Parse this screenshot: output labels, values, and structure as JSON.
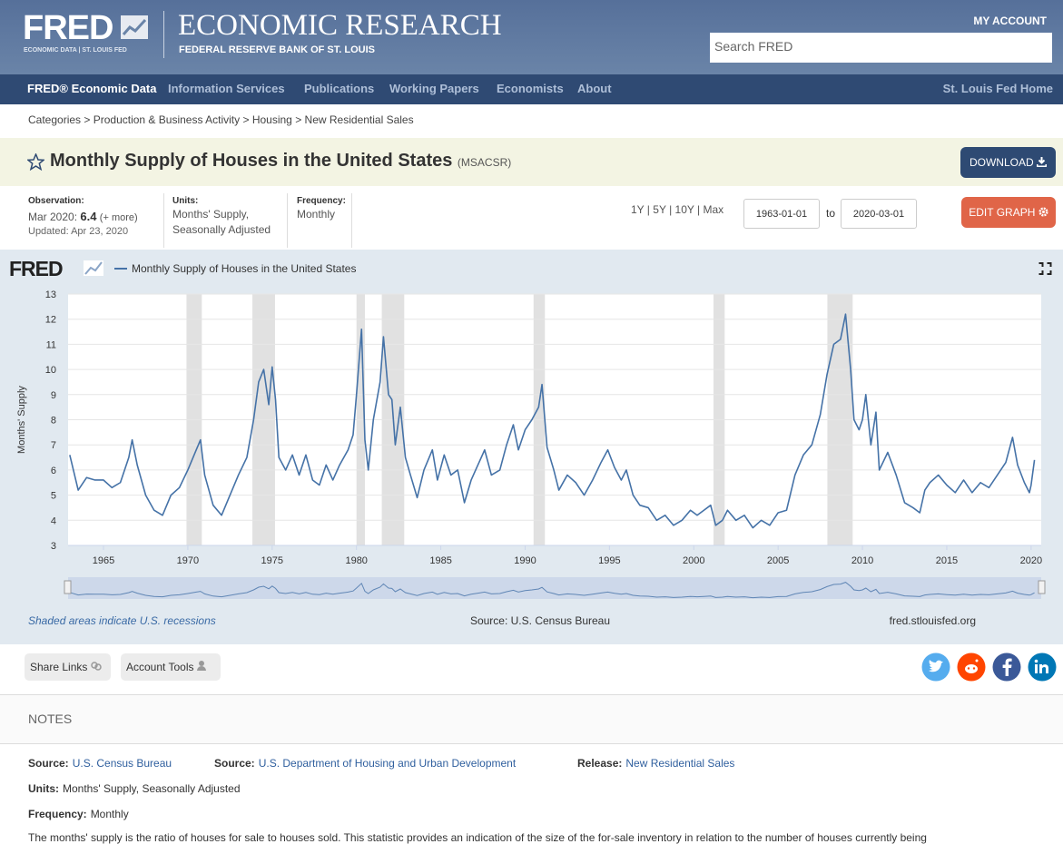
{
  "header": {
    "logo": "FRED",
    "logo_sub": "ECONOMIC DATA | ST. LOUIS FED",
    "title": "ECONOMIC RESEARCH",
    "subtitle": "FEDERAL RESERVE BANK OF ST. LOUIS",
    "account": "MY ACCOUNT",
    "search": "Search FRED"
  },
  "nav": {
    "items": [
      "FRED® Economic Data",
      "Information Services",
      "Publications",
      "Working Papers",
      "Economists",
      "About"
    ],
    "right": "St. Louis Fed Home"
  },
  "breadcrumb": [
    "Categories",
    "Production & Business Activity",
    "Housing",
    "New Residential Sales"
  ],
  "series": {
    "title": "Monthly Supply of Houses in the United States",
    "id": "(MSACSR)",
    "download": "DOWNLOAD"
  },
  "meta": {
    "observation_label": "Observation:",
    "observation_date": "Mar 2020:",
    "observation_value": "6.4",
    "more": "(+ more)",
    "updated": "Updated: Apr 23, 2020",
    "units_label": "Units:",
    "units": [
      "Months' Supply,",
      "Seasonally Adjusted"
    ],
    "frequency_label": "Frequency:",
    "frequency": "Monthly",
    "ranges": [
      "1Y",
      "5Y",
      "10Y",
      "Max"
    ],
    "date_from": "1963-01-01",
    "to": "to",
    "date_to": "2020-03-01",
    "edit": "EDIT GRAPH"
  },
  "chart_data": {
    "type": "line",
    "logo": "FRED",
    "ylabel": "Months' Supply",
    "grid": true,
    "xlim": [
      1962.9,
      2020.6
    ],
    "ylim": [
      3,
      13
    ],
    "xticks": [
      1965,
      1970,
      1975,
      1980,
      1985,
      1990,
      1995,
      2000,
      2005,
      2010,
      2015,
      2020
    ],
    "yticks": [
      3,
      4,
      5,
      6,
      7,
      8,
      9,
      10,
      11,
      12,
      13
    ],
    "recessions": [
      [
        1969.92,
        1970.83
      ],
      [
        1973.83,
        1975.17
      ],
      [
        1980.0,
        1980.5
      ],
      [
        1981.5,
        1982.83
      ],
      [
        1990.5,
        1991.17
      ],
      [
        2001.17,
        2001.83
      ],
      [
        2007.92,
        2009.42
      ]
    ],
    "recession_color": "#e1e1e1",
    "x": [
      1963.0,
      1963.5,
      1964.0,
      1964.5,
      1965.0,
      1965.5,
      1966.0,
      1966.5,
      1966.7,
      1967.0,
      1967.5,
      1968.0,
      1968.5,
      1969.0,
      1969.5,
      1970.0,
      1970.5,
      1970.75,
      1971.0,
      1971.5,
      1972.0,
      1972.5,
      1973.0,
      1973.5,
      1973.9,
      1974.2,
      1974.5,
      1974.8,
      1975.0,
      1975.2,
      1975.4,
      1975.8,
      1976.2,
      1976.6,
      1977.0,
      1977.4,
      1977.8,
      1978.2,
      1978.6,
      1979.0,
      1979.5,
      1979.8,
      1980.0,
      1980.3,
      1980.5,
      1980.7,
      1981.0,
      1981.4,
      1981.6,
      1981.9,
      1982.1,
      1982.3,
      1982.6,
      1982.9,
      1983.2,
      1983.6,
      1984.0,
      1984.5,
      1984.8,
      1985.2,
      1985.6,
      1986.0,
      1986.4,
      1986.8,
      1987.2,
      1987.6,
      1988.0,
      1988.5,
      1988.9,
      1989.3,
      1989.6,
      1990.0,
      1990.4,
      1990.8,
      1991.0,
      1991.3,
      1991.7,
      1992.0,
      1992.5,
      1993.0,
      1993.5,
      1994.0,
      1994.5,
      1994.9,
      1995.3,
      1995.7,
      1996.0,
      1996.4,
      1996.8,
      1997.3,
      1997.8,
      1998.3,
      1998.8,
      1999.3,
      1999.8,
      2000.2,
      2000.6,
      2001.0,
      2001.3,
      2001.7,
      2002.0,
      2002.5,
      2003.0,
      2003.5,
      2004.0,
      2004.5,
      2005.0,
      2005.5,
      2006.0,
      2006.5,
      2007.0,
      2007.5,
      2007.9,
      2008.3,
      2008.7,
      2009.0,
      2009.3,
      2009.5,
      2009.8,
      2010.0,
      2010.2,
      2010.5,
      2010.8,
      2011.0,
      2011.5,
      2012.0,
      2012.5,
      2013.0,
      2013.4,
      2013.7,
      2014.0,
      2014.5,
      2015.0,
      2015.5,
      2016.0,
      2016.5,
      2017.0,
      2017.5,
      2018.0,
      2018.5,
      2018.9,
      2019.2,
      2019.6,
      2019.9,
      2020.0,
      2020.2
    ],
    "series": [
      {
        "name": "Monthly Supply of Houses in the United States",
        "color": "#4572a7",
        "values": [
          6.6,
          5.2,
          5.7,
          5.6,
          5.6,
          5.3,
          5.5,
          6.5,
          7.2,
          6.2,
          5.0,
          4.4,
          4.2,
          5.0,
          5.3,
          6.0,
          6.8,
          7.2,
          5.8,
          4.6,
          4.2,
          5.0,
          5.8,
          6.5,
          8.0,
          9.5,
          10.0,
          8.6,
          10.1,
          8.8,
          6.5,
          6.0,
          6.6,
          5.8,
          6.6,
          5.6,
          5.4,
          6.2,
          5.6,
          6.2,
          6.8,
          7.4,
          9.0,
          11.6,
          7.2,
          6.0,
          8.0,
          9.5,
          11.3,
          9.0,
          8.8,
          7.0,
          8.5,
          6.5,
          5.8,
          4.9,
          6.0,
          6.8,
          5.6,
          6.6,
          5.8,
          6.0,
          4.7,
          5.6,
          6.2,
          6.8,
          5.8,
          6.0,
          7.0,
          7.8,
          6.8,
          7.6,
          8.0,
          8.5,
          9.4,
          6.9,
          6.0,
          5.2,
          5.8,
          5.5,
          5.0,
          5.6,
          6.3,
          6.8,
          6.1,
          5.6,
          6.0,
          5.0,
          4.6,
          4.5,
          4.0,
          4.2,
          3.8,
          4.0,
          4.4,
          4.2,
          4.4,
          4.6,
          3.8,
          4.0,
          4.4,
          4.0,
          4.2,
          3.7,
          4.0,
          3.8,
          4.3,
          4.4,
          5.8,
          6.6,
          7.0,
          8.2,
          9.8,
          11.0,
          11.2,
          12.2,
          10.0,
          8.0,
          7.6,
          8.0,
          9.0,
          7.0,
          8.3,
          6.0,
          6.7,
          5.8,
          4.7,
          4.5,
          4.3,
          5.2,
          5.5,
          5.8,
          5.4,
          5.1,
          5.6,
          5.1,
          5.5,
          5.3,
          5.8,
          6.3,
          7.3,
          6.2,
          5.5,
          5.1,
          5.4,
          6.4
        ]
      }
    ],
    "footnote": "Shaded areas indicate U.S. recessions",
    "source": "Source: U.S. Census Bureau",
    "site": "fred.stlouisfed.org"
  },
  "share": {
    "links": "Share Links",
    "tools": "Account Tools"
  },
  "notes": {
    "heading": "NOTES",
    "source1_label": "Source:",
    "source1": "U.S. Census Bureau",
    "source2_label": "Source:",
    "source2": "U.S. Department of Housing and Urban Development",
    "release_label": "Release:",
    "release": "New Residential Sales",
    "units_label": "Units:",
    "units": "Months' Supply, Seasonally Adjusted",
    "frequency_label": "Frequency:",
    "frequency": "Monthly",
    "text": "The months' supply is the ratio of houses for sale to houses sold. This statistic provides an indication of the size of the for-sale inventory in relation to the number of houses currently being"
  }
}
